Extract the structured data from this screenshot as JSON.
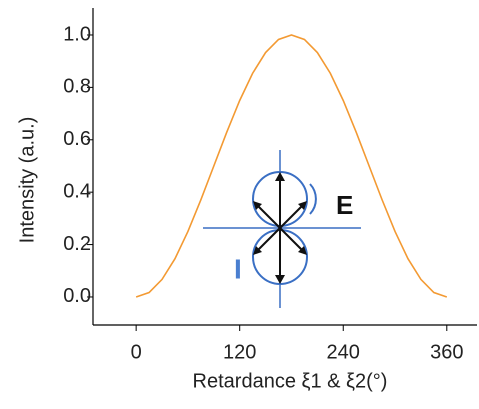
{
  "chart_data": {
    "type": "line",
    "xlabel": "Retardance ξ1 & ξ2(°)",
    "ylabel": "Intensity (a.u.)",
    "x": [
      0,
      15,
      30,
      45,
      60,
      75,
      90,
      105,
      120,
      135,
      150,
      165,
      180,
      195,
      210,
      225,
      240,
      255,
      270,
      285,
      300,
      315,
      330,
      345,
      360
    ],
    "series": [
      {
        "color": "#f39a33",
        "values": [
          0,
          0.017,
          0.067,
          0.146,
          0.25,
          0.371,
          0.5,
          0.629,
          0.75,
          0.854,
          0.933,
          0.983,
          1,
          0.983,
          0.933,
          0.854,
          0.75,
          0.629,
          0.5,
          0.371,
          0.25,
          0.146,
          0.067,
          0.017,
          0
        ]
      }
    ],
    "xlim": [
      -50,
      395
    ],
    "xticks": [
      0,
      120,
      240,
      360
    ],
    "ylim": [
      -0.107,
      1.103
    ],
    "yticks": [
      {
        "value": 0,
        "label": "0.0"
      },
      0.2,
      0.4,
      0.6,
      0.8,
      {
        "value": 1,
        "label": "1.0"
      }
    ],
    "annotations": {
      "field": "E",
      "intensity": "I"
    }
  }
}
